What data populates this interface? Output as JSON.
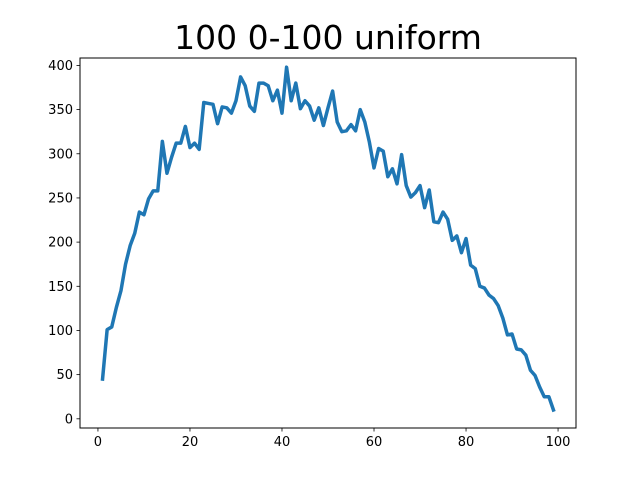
{
  "chart_data": {
    "type": "line",
    "title": "100 0-100 uniform",
    "xlabel": "",
    "ylabel": "",
    "xlim": [
      -3.9,
      103.9
    ],
    "ylim": [
      -10.4,
      408.4
    ],
    "grid": false,
    "xticks": [
      0,
      20,
      40,
      60,
      80,
      100
    ],
    "yticks": [
      0,
      50,
      100,
      150,
      200,
      250,
      300,
      350,
      400
    ],
    "color": "#1f77b4",
    "series": [
      {
        "x": [
          1,
          2,
          3,
          4,
          5,
          6,
          7,
          8,
          9,
          10,
          11,
          12,
          13,
          14,
          15,
          16,
          17,
          18,
          19,
          20,
          21,
          22,
          23,
          24,
          25,
          26,
          27,
          28,
          29,
          30,
          31,
          32,
          33,
          34,
          35,
          36,
          37,
          38,
          39,
          40,
          41,
          42,
          43,
          44,
          45,
          46,
          47,
          48,
          49,
          50,
          51,
          52,
          53,
          54,
          55,
          56,
          57,
          58,
          59,
          60,
          61,
          62,
          63,
          64,
          65,
          66,
          67,
          68,
          69,
          70,
          71,
          72,
          73,
          74,
          75,
          76,
          77,
          78,
          79,
          80,
          81,
          82,
          83,
          84,
          85,
          86,
          87,
          88,
          89,
          90,
          91,
          92,
          93,
          94,
          95,
          96,
          97,
          98,
          99
        ],
        "y": [
          45,
          101,
          104,
          126,
          145,
          175,
          196,
          210,
          234,
          231,
          249,
          258,
          258,
          314,
          278,
          296,
          312,
          312,
          331,
          307,
          312,
          305,
          358,
          357,
          356,
          334,
          353,
          352,
          346,
          360,
          387,
          377,
          354,
          348,
          380,
          380,
          377,
          360,
          372,
          346,
          398,
          360,
          380,
          351,
          360,
          354,
          338,
          352,
          332,
          352,
          371,
          336,
          325,
          326,
          333,
          326,
          350,
          336,
          313,
          284,
          306,
          303,
          274,
          283,
          266,
          299,
          264,
          251,
          256,
          264,
          239,
          259,
          223,
          222,
          234,
          226,
          202,
          207,
          188,
          204,
          174,
          170,
          150,
          148,
          140,
          136,
          128,
          114,
          95,
          96,
          79,
          78,
          72,
          55,
          49,
          36,
          25,
          25,
          10
        ]
      }
    ]
  }
}
